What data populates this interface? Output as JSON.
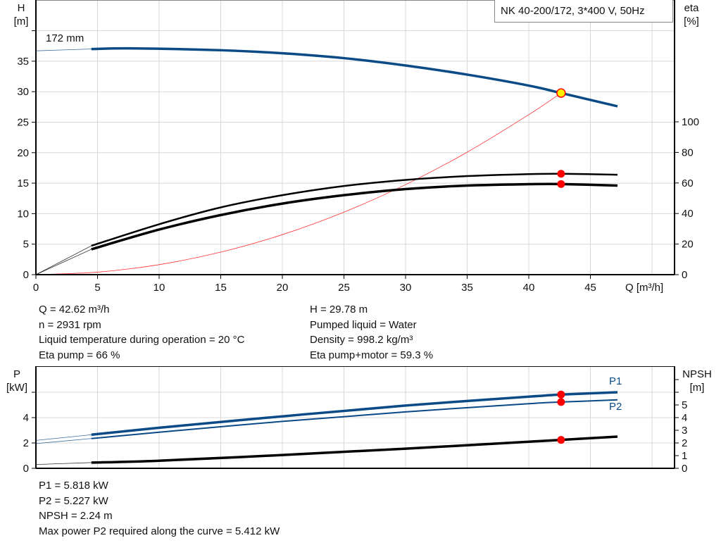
{
  "title": "NK 40-200/172, 3*400 V, 50Hz",
  "colors": {
    "head": "#0a4a86",
    "eta": "#000000",
    "system": "#ff3333",
    "power": "#0a4a86",
    "npsh": "#000000",
    "duty_point": "#ff0000",
    "duty_point_head_fill": "#ffee00",
    "grid": "#d8d8d8"
  },
  "chart_data": [
    {
      "type": "line",
      "xlabel": "Q [m³/h]",
      "ylabel_left": [
        "H",
        "[m]"
      ],
      "ylabel_right": [
        "eta",
        "[%]"
      ],
      "xlim": [
        0,
        52
      ],
      "ylim_left": [
        0,
        45
      ],
      "ylim_right": [
        0,
        180
      ],
      "x_ticks": [
        "0",
        "5",
        "10",
        "15",
        "20",
        "25",
        "30",
        "35",
        "40",
        "45"
      ],
      "y_left_ticks": [
        "0",
        "5",
        "10",
        "15",
        "20",
        "25",
        "30",
        "35"
      ],
      "y_right_ticks": [
        "0",
        "20",
        "40",
        "60",
        "80",
        "100"
      ],
      "grid": true,
      "annotation": "172 mm",
      "series": [
        {
          "key": "head",
          "axis": "left",
          "points": [
            [
              0,
              36.7
            ],
            [
              4.5,
              37.0
            ],
            [
              8,
              37.1
            ],
            [
              15,
              36.8
            ],
            [
              20,
              36.3
            ],
            [
              25,
              35.5
            ],
            [
              30,
              34.3
            ],
            [
              35,
              32.8
            ],
            [
              40,
              31.0
            ],
            [
              42.62,
              29.78
            ],
            [
              47.2,
              27.6
            ]
          ]
        },
        {
          "key": "eta_pump",
          "axis": "right",
          "points": [
            [
              0,
              0
            ],
            [
              4.5,
              18.9
            ],
            [
              10,
              33
            ],
            [
              15,
              44
            ],
            [
              20,
              52
            ],
            [
              25,
              58
            ],
            [
              30,
              62
            ],
            [
              35,
              64.5
            ],
            [
              40,
              65.8
            ],
            [
              42.62,
              66
            ],
            [
              47.2,
              65.4
            ]
          ]
        },
        {
          "key": "eta_pump_motor",
          "axis": "right",
          "points": [
            [
              0,
              0
            ],
            [
              4.5,
              16.6
            ],
            [
              10,
              29.5
            ],
            [
              15,
              39
            ],
            [
              20,
              46.5
            ],
            [
              25,
              52
            ],
            [
              30,
              56
            ],
            [
              35,
              58.3
            ],
            [
              40,
              59.2
            ],
            [
              42.62,
              59.3
            ],
            [
              47.2,
              58.3
            ]
          ]
        },
        {
          "key": "system_curve",
          "axis": "left",
          "points": [
            [
              0,
              0
            ],
            [
              5,
              0.41
            ],
            [
              10,
              1.64
            ],
            [
              15,
              3.69
            ],
            [
              20,
              6.56
            ],
            [
              25,
              10.25
            ],
            [
              30,
              14.76
            ],
            [
              35,
              20.08
            ],
            [
              40,
              26.23
            ],
            [
              42.62,
              29.78
            ]
          ]
        }
      ],
      "duty_points": [
        {
          "key": "head",
          "axis": "left",
          "x": 42.62,
          "y": 29.78
        },
        {
          "key": "eta_pump",
          "axis": "right",
          "x": 42.62,
          "y": 66
        },
        {
          "key": "eta_pump_motor",
          "axis": "right",
          "x": 42.62,
          "y": 59.3
        }
      ]
    },
    {
      "type": "line",
      "ylabel_left": [
        "P",
        "[kW]"
      ],
      "ylabel_right": [
        "NPSH",
        "[m]"
      ],
      "xlim": [
        0,
        52
      ],
      "ylim_left": [
        0,
        8
      ],
      "ylim_right": [
        0,
        8
      ],
      "y_left_ticks": [
        "0",
        "2",
        "4"
      ],
      "y_right_ticks": [
        "0",
        "1",
        "2",
        "3",
        "4",
        "5"
      ],
      "grid": true,
      "series": [
        {
          "key": "P1",
          "name": "P1",
          "axis": "left",
          "points": [
            [
              0,
              2.2
            ],
            [
              4.5,
              2.65
            ],
            [
              10,
              3.2
            ],
            [
              20,
              4.1
            ],
            [
              30,
              4.95
            ],
            [
              40,
              5.65
            ],
            [
              42.62,
              5.818
            ],
            [
              47.2,
              6.0
            ]
          ]
        },
        {
          "key": "P2",
          "name": "P2",
          "axis": "left",
          "points": [
            [
              0,
              1.95
            ],
            [
              4.5,
              2.35
            ],
            [
              10,
              2.85
            ],
            [
              20,
              3.7
            ],
            [
              30,
              4.45
            ],
            [
              40,
              5.1
            ],
            [
              42.62,
              5.227
            ],
            [
              47.2,
              5.4
            ]
          ]
        },
        {
          "key": "NPSH",
          "axis": "right",
          "points": [
            [
              0,
              0.3
            ],
            [
              4.5,
              0.45
            ],
            [
              10,
              0.6
            ],
            [
              20,
              1.05
            ],
            [
              30,
              1.55
            ],
            [
              40,
              2.1
            ],
            [
              42.62,
              2.24
            ],
            [
              47.2,
              2.5
            ]
          ]
        }
      ],
      "duty_points": [
        {
          "key": "P1",
          "x": 42.62,
          "y": 5.818
        },
        {
          "key": "P2",
          "x": 42.62,
          "y": 5.227
        },
        {
          "key": "NPSH",
          "x": 42.62,
          "y": 2.24
        }
      ]
    }
  ],
  "info_left": [
    "Q = 42.62 m³/h",
    "n = 2931 rpm",
    "Liquid temperature during operation = 20 °C",
    "Eta pump = 66 %"
  ],
  "info_right": [
    "H = 29.78 m",
    "Pumped liquid = Water",
    "Density = 998.2 kg/m³",
    "Eta pump+motor = 59.3 %"
  ],
  "info_bottom": [
    "P1 = 5.818 kW",
    "P2 = 5.227 kW",
    "NPSH = 2.24 m",
    "Max power P2 required along the curve = 5.412 kW"
  ]
}
